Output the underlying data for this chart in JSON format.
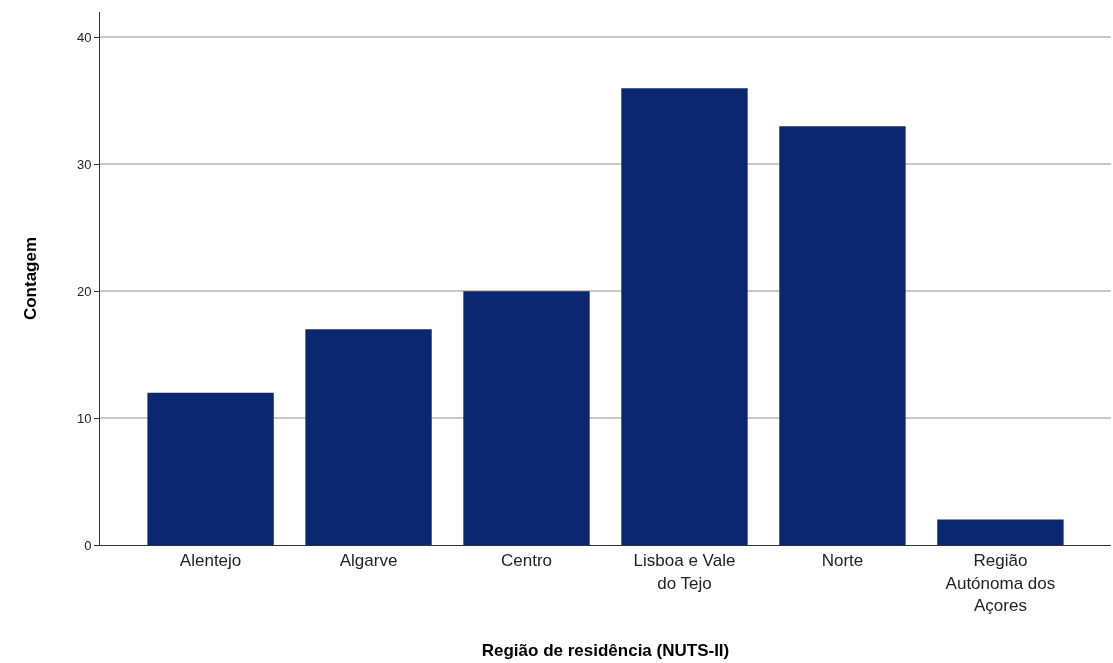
{
  "chart_data": {
    "type": "bar",
    "xlabel": "Região de residência (NUTS-II)",
    "ylabel": "Contagem",
    "categories": [
      "Alentejo",
      "Algarve",
      "Centro",
      "Lisboa e Vale do Tejo",
      "Norte",
      "Região Autónoma dos Açores"
    ],
    "values": [
      12,
      17,
      20,
      36,
      33,
      2
    ],
    "color": "#0b2771",
    "ylim": [
      0,
      42
    ],
    "yticks": [
      0,
      10,
      20,
      30,
      40
    ],
    "grid": "y"
  }
}
